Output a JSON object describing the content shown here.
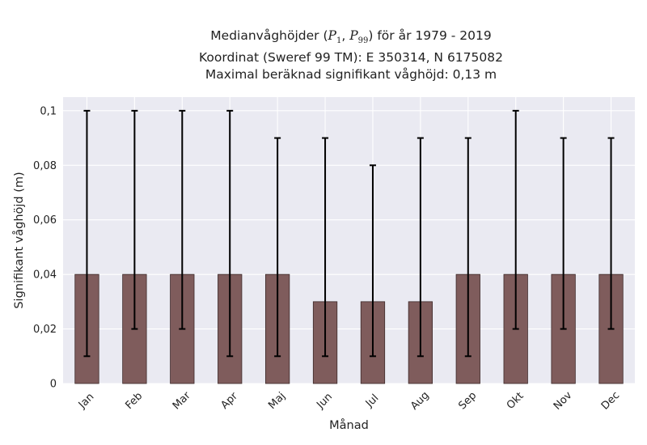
{
  "title": {
    "line1_prefix": "Medianvåghöjder (",
    "p_symbol": "P",
    "p1_sub": "1",
    "p99_sub": "99",
    "line1_suffix": ") för år 1979 - 2019",
    "line2": "Koordinat (Sweref 99 TM): E 350314, N 6175082",
    "line3": "Maximal beräknad signifikant våghöjd: 0,13 m"
  },
  "chart_data": {
    "type": "bar",
    "xlabel": "Månad",
    "ylabel": "Signifikant våghöjd (m)",
    "ylim": [
      0,
      0.105
    ],
    "yticks": [
      0,
      0.02,
      0.04,
      0.06,
      0.08,
      0.1
    ],
    "ytick_labels": [
      "0",
      "0,02",
      "0,04",
      "0,06",
      "0,08",
      "0,1"
    ],
    "grid": true,
    "categories": [
      "Jan",
      "Feb",
      "Mar",
      "Apr",
      "Maj",
      "Jun",
      "Jul",
      "Aug",
      "Sep",
      "Okt",
      "Nov",
      "Dec"
    ],
    "values": [
      0.04,
      0.04,
      0.04,
      0.04,
      0.04,
      0.03,
      0.03,
      0.03,
      0.04,
      0.04,
      0.04,
      0.04
    ],
    "error_low": [
      0.01,
      0.02,
      0.02,
      0.01,
      0.01,
      0.01,
      0.01,
      0.01,
      0.01,
      0.02,
      0.02,
      0.02
    ],
    "error_high": [
      0.1,
      0.1,
      0.1,
      0.1,
      0.09,
      0.09,
      0.08,
      0.09,
      0.09,
      0.1,
      0.09,
      0.09
    ],
    "colors": {
      "bar": "#7f5c5c",
      "bar_edge": "#3d2a2a",
      "background": "#eaeaf2",
      "grid": "#ffffff",
      "error": "#000000"
    }
  }
}
